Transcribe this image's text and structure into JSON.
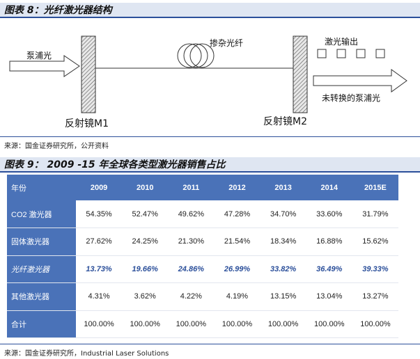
{
  "figure8": {
    "title": "图表 8：光纤激光器结构",
    "labels": {
      "pump": "泵浦光",
      "doped_fiber": "掺杂光纤",
      "laser_output": "激光输出",
      "unconverted_pump": "未转换的泵浦光",
      "mirror1": "反射镜M1",
      "mirror2": "反射镜M2"
    },
    "source": "来源：国金证券研究所，公开资料"
  },
  "figure9": {
    "title": "图表 9： 2009 -15 年全球各类型激光器销售占比",
    "header": {
      "label": "年份",
      "years": [
        "2009",
        "2010",
        "2011",
        "2012",
        "2013",
        "2014",
        "2015E"
      ]
    },
    "rows": [
      {
        "label": "CO2 激光器",
        "values": [
          "54.35%",
          "52.47%",
          "49.62%",
          "47.28%",
          "34.70%",
          "33.60%",
          "31.79%"
        ]
      },
      {
        "label": "固体激光器",
        "values": [
          "27.62%",
          "24.25%",
          "21.30%",
          "21.54%",
          "18.34%",
          "16.88%",
          "15.62%"
        ]
      },
      {
        "label": "光纤激光器",
        "values": [
          "13.73%",
          "19.66%",
          "24.86%",
          "26.99%",
          "33.82%",
          "36.49%",
          "39.33%"
        ]
      },
      {
        "label": "其他激光器",
        "values": [
          "4.31%",
          "3.62%",
          "4.22%",
          "4.19%",
          "13.15%",
          "13.04%",
          "13.27%"
        ]
      },
      {
        "label": "合计",
        "values": [
          "100.00%",
          "100.00%",
          "100.00%",
          "100.00%",
          "100.00%",
          "100.00%",
          "100.00%"
        ]
      }
    ],
    "highlight_row": 2,
    "source": "来源：国金证券研究所，Industrial Laser Solutions"
  }
}
